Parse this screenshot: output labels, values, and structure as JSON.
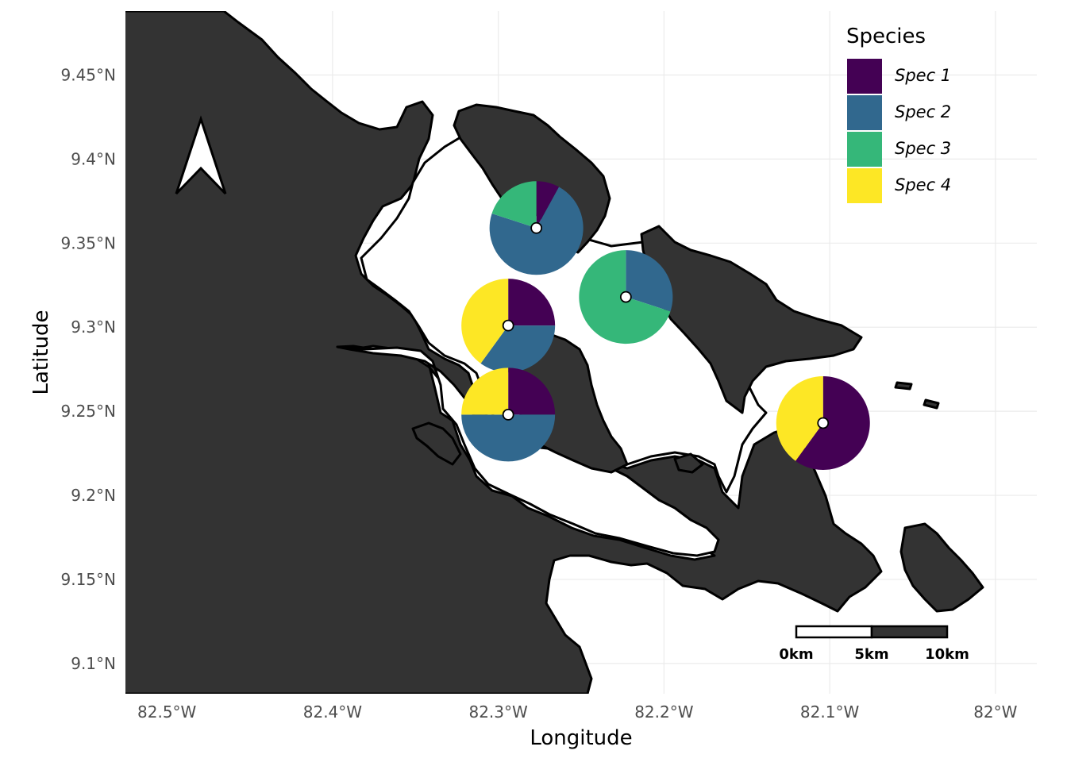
{
  "map": {
    "x_axis_title": "Longitude",
    "y_axis_title": "Latitude",
    "x_ticks": [
      {
        "value": -82.5,
        "label": "82.5°W"
      },
      {
        "value": -82.4,
        "label": "82.4°W"
      },
      {
        "value": -82.3,
        "label": "82.3°W"
      },
      {
        "value": -82.2,
        "label": "82.2°W"
      },
      {
        "value": -82.1,
        "label": "82.1°W"
      },
      {
        "value": -82.0,
        "label": "82°W"
      }
    ],
    "y_ticks": [
      {
        "value": 9.45,
        "label": "9.45°N"
      },
      {
        "value": 9.4,
        "label": "9.4°N"
      },
      {
        "value": 9.35,
        "label": "9.35°N"
      },
      {
        "value": 9.3,
        "label": "9.3°N"
      },
      {
        "value": 9.25,
        "label": "9.25°N"
      },
      {
        "value": 9.2,
        "label": "9.2°N"
      },
      {
        "value": 9.15,
        "label": "9.15°N"
      },
      {
        "value": 9.1,
        "label": "9.1°N"
      }
    ],
    "xlim": [
      -82.525,
      -81.975
    ],
    "ylim": [
      9.082,
      9.488
    ],
    "land_color": "#333333",
    "north_arrow": "north-arrow-icon",
    "scale_bar": {
      "labels": [
        "0km",
        "5km",
        "10km"
      ]
    }
  },
  "legend": {
    "title": "Species",
    "placement": "top-right",
    "items": [
      {
        "label": "Spec 1",
        "color": "#440154"
      },
      {
        "label": "Spec 2",
        "color": "#31688E"
      },
      {
        "label": "Spec 3",
        "color": "#35B779"
      },
      {
        "label": "Spec 4",
        "color": "#FDE725"
      }
    ]
  },
  "chart_data": {
    "type": "pie",
    "description_units": "site proportions per species (Spec 1, Spec 2, Spec 3, Spec 4)",
    "sites": [
      {
        "lon": -82.277,
        "lat": 9.359,
        "proportions": [
          0.08,
          0.72,
          0.2,
          0.0
        ]
      },
      {
        "lon": -82.223,
        "lat": 9.318,
        "proportions": [
          0.0,
          0.3,
          0.7,
          0.0
        ]
      },
      {
        "lon": -82.294,
        "lat": 9.301,
        "proportions": [
          0.25,
          0.35,
          0.0,
          0.4
        ]
      },
      {
        "lon": -82.294,
        "lat": 9.248,
        "proportions": [
          0.25,
          0.5,
          0.0,
          0.25
        ]
      },
      {
        "lon": -82.104,
        "lat": 9.243,
        "proportions": [
          0.6,
          0.0,
          0.0,
          0.4
        ]
      }
    ]
  }
}
